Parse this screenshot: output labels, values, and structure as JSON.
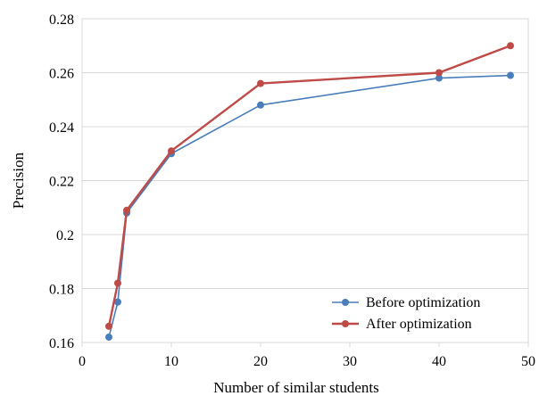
{
  "chart_data": {
    "type": "line",
    "xlabel": "Number of similar students",
    "ylabel": "Precision",
    "xlim": [
      0,
      50
    ],
    "ylim": [
      0.16,
      0.28
    ],
    "xticks": [
      0,
      10,
      20,
      30,
      40,
      50
    ],
    "yticks": [
      0.16,
      0.18,
      0.2,
      0.22,
      0.24,
      0.26,
      0.28
    ],
    "x_tick_labels": [
      "0",
      "10",
      "20",
      "30",
      "40",
      "50"
    ],
    "y_tick_labels": [
      "0.16",
      "0.18",
      "0.2",
      "0.22",
      "0.24",
      "0.26",
      "0.28"
    ],
    "grid": "horizontal",
    "legend_position": "bottom-right",
    "series": [
      {
        "name": "Before optimization",
        "color": "#4a7ebb",
        "x": [
          3,
          4,
          5,
          10,
          20,
          40,
          48
        ],
        "y": [
          0.162,
          0.175,
          0.208,
          0.23,
          0.248,
          0.258,
          0.259
        ]
      },
      {
        "name": "After optimization",
        "color": "#be4b48",
        "x": [
          3,
          4,
          5,
          10,
          20,
          40,
          48
        ],
        "y": [
          0.166,
          0.182,
          0.209,
          0.231,
          0.256,
          0.26,
          0.27
        ]
      }
    ]
  }
}
